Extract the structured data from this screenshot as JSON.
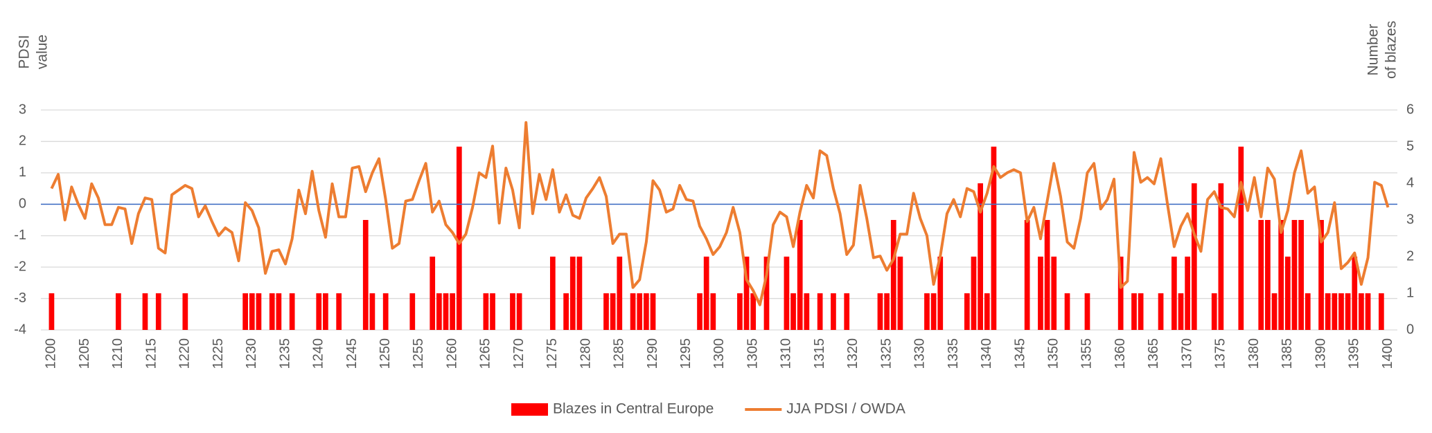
{
  "chart_data": {
    "type": "bar-line",
    "y_label": [
      "PDSI",
      "value"
    ],
    "y2_label": [
      "Number",
      "of blazes"
    ],
    "x": [
      1200,
      1201,
      1202,
      1203,
      1204,
      1205,
      1206,
      1207,
      1208,
      1209,
      1210,
      1211,
      1212,
      1213,
      1214,
      1215,
      1216,
      1217,
      1218,
      1219,
      1220,
      1221,
      1222,
      1223,
      1224,
      1225,
      1226,
      1227,
      1228,
      1229,
      1230,
      1231,
      1232,
      1233,
      1234,
      1235,
      1236,
      1237,
      1238,
      1239,
      1240,
      1241,
      1242,
      1243,
      1244,
      1245,
      1246,
      1247,
      1248,
      1249,
      1250,
      1251,
      1252,
      1253,
      1254,
      1255,
      1256,
      1257,
      1258,
      1259,
      1260,
      1261,
      1262,
      1263,
      1264,
      1265,
      1266,
      1267,
      1268,
      1269,
      1270,
      1271,
      1272,
      1273,
      1274,
      1275,
      1276,
      1277,
      1278,
      1279,
      1280,
      1281,
      1282,
      1283,
      1284,
      1285,
      1286,
      1287,
      1288,
      1289,
      1290,
      1291,
      1292,
      1293,
      1294,
      1295,
      1296,
      1297,
      1298,
      1299,
      1300,
      1301,
      1302,
      1303,
      1304,
      1305,
      1306,
      1307,
      1308,
      1309,
      1310,
      1311,
      1312,
      1313,
      1314,
      1315,
      1316,
      1317,
      1318,
      1319,
      1320,
      1321,
      1322,
      1323,
      1324,
      1325,
      1326,
      1327,
      1328,
      1329,
      1330,
      1331,
      1332,
      1333,
      1334,
      1335,
      1336,
      1337,
      1338,
      1339,
      1340,
      1341,
      1342,
      1343,
      1344,
      1345,
      1346,
      1347,
      1348,
      1349,
      1350,
      1351,
      1352,
      1353,
      1354,
      1355,
      1356,
      1357,
      1358,
      1359,
      1360,
      1361,
      1362,
      1363,
      1364,
      1365,
      1366,
      1367,
      1368,
      1369,
      1370,
      1371,
      1372,
      1373,
      1374,
      1375,
      1376,
      1377,
      1378,
      1379,
      1380,
      1381,
      1382,
      1383,
      1384,
      1385,
      1386,
      1387,
      1388,
      1389,
      1390,
      1391,
      1392,
      1393,
      1394,
      1395,
      1396,
      1397,
      1398,
      1399,
      1400
    ],
    "xlim": [
      1198.4,
      1401.4
    ],
    "xticks": [
      1200,
      1205,
      1210,
      1215,
      1220,
      1225,
      1230,
      1235,
      1240,
      1245,
      1250,
      1255,
      1260,
      1265,
      1270,
      1275,
      1280,
      1285,
      1290,
      1295,
      1300,
      1305,
      1310,
      1315,
      1320,
      1325,
      1330,
      1335,
      1340,
      1345,
      1350,
      1355,
      1360,
      1365,
      1370,
      1375,
      1380,
      1385,
      1390,
      1395,
      1400
    ],
    "ylim": [
      -4,
      3
    ],
    "yticks": [
      -4,
      -3,
      -2,
      -1,
      0,
      1,
      2,
      3
    ],
    "y2lim": [
      0,
      6
    ],
    "y2ticks": [
      0,
      1,
      2,
      3,
      4,
      5,
      6
    ],
    "grid": true,
    "zero_line_color": "#4472c4",
    "legend": "bottom",
    "series": [
      {
        "name": "Blazes in Central Europe",
        "kind": "bar",
        "axis": "y2",
        "color": "#ff0000",
        "values": [
          1,
          0,
          0,
          0,
          0,
          0,
          0,
          0,
          0,
          0,
          1,
          0,
          0,
          0,
          1,
          0,
          1,
          0,
          0,
          0,
          1,
          0,
          0,
          0,
          0,
          0,
          0,
          0,
          0,
          1,
          1,
          1,
          0,
          1,
          1,
          0,
          1,
          0,
          0,
          0,
          1,
          1,
          0,
          1,
          0,
          0,
          0,
          3,
          1,
          0,
          1,
          0,
          0,
          0,
          1,
          0,
          0,
          2,
          1,
          1,
          1,
          5,
          0,
          0,
          0,
          1,
          1,
          0,
          0,
          1,
          1,
          0,
          0,
          0,
          0,
          2,
          0,
          1,
          2,
          2,
          0,
          0,
          0,
          1,
          1,
          2,
          0,
          1,
          1,
          1,
          1,
          0,
          0,
          0,
          0,
          0,
          0,
          1,
          2,
          1,
          0,
          0,
          0,
          1,
          2,
          1,
          0,
          2,
          0,
          0,
          2,
          1,
          3,
          1,
          0,
          1,
          0,
          1,
          0,
          1,
          0,
          0,
          0,
          0,
          1,
          1,
          3,
          2,
          0,
          0,
          0,
          1,
          1,
          2,
          0,
          0,
          0,
          1,
          2,
          4,
          1,
          5,
          0,
          0,
          0,
          0,
          3,
          0,
          2,
          3,
          2,
          0,
          1,
          0,
          0,
          1,
          0,
          0,
          0,
          0,
          2,
          0,
          1,
          1,
          0,
          0,
          1,
          0,
          2,
          1,
          2,
          4,
          0,
          0,
          1,
          4,
          0,
          0,
          5,
          0,
          0,
          3,
          3,
          1,
          3,
          2,
          3,
          3,
          1,
          0,
          3,
          1,
          1,
          1,
          1,
          2,
          1,
          1,
          0,
          1,
          0
        ]
      },
      {
        "name": "JJA PDSI / OWDA",
        "kind": "line",
        "color": "#ed7d31",
        "values": [
          0.5,
          0.95,
          -0.5,
          0.55,
          0,
          -0.45,
          0.65,
          0.2,
          -0.65,
          -0.65,
          -0.1,
          -0.15,
          -1.25,
          -0.3,
          0.2,
          0.15,
          -1.4,
          -1.55,
          0.3,
          0.45,
          0.6,
          0.5,
          -0.4,
          -0.05,
          -0.55,
          -1.0,
          -0.75,
          -0.9,
          -1.8,
          0.05,
          -0.2,
          -0.75,
          -2.2,
          -1.5,
          -1.45,
          -1.9,
          -1.1,
          0.45,
          -0.3,
          1.05,
          -0.2,
          -1.05,
          0.65,
          -0.4,
          -0.4,
          1.15,
          1.2,
          0.4,
          1.0,
          1.45,
          0.15,
          -1.4,
          -1.25,
          0.1,
          0.15,
          0.75,
          1.3,
          -0.25,
          0.1,
          -0.65,
          -0.9,
          -1.25,
          -0.95,
          -0.1,
          1.0,
          0.85,
          1.85,
          -0.6,
          1.15,
          0.45,
          -0.75,
          2.6,
          -0.3,
          0.95,
          0.15,
          1.1,
          -0.25,
          0.3,
          -0.35,
          -0.45,
          0.2,
          0.5,
          0.85,
          0.25,
          -1.25,
          -0.95,
          -0.95,
          -2.65,
          -2.4,
          -1.2,
          0.75,
          0.45,
          -0.25,
          -0.15,
          0.6,
          0.15,
          0.1,
          -0.7,
          -1.1,
          -1.6,
          -1.35,
          -0.9,
          -0.1,
          -0.9,
          -2.4,
          -2.75,
          -3.2,
          -2.25,
          -0.65,
          -0.25,
          -0.4,
          -1.35,
          -0.25,
          0.6,
          0.2,
          1.7,
          1.55,
          0.5,
          -0.3,
          -1.6,
          -1.3,
          0.6,
          -0.45,
          -1.7,
          -1.65,
          -2.1,
          -1.75,
          -0.95,
          -0.95,
          0.35,
          -0.45,
          -1.0,
          -2.55,
          -1.65,
          -0.3,
          0.15,
          -0.4,
          0.5,
          0.4,
          -0.25,
          0.35,
          1.2,
          0.85,
          1.0,
          1.1,
          1.0,
          -0.55,
          -0.1,
          -1.1,
          0.1,
          1.3,
          0.25,
          -1.2,
          -1.4,
          -0.45,
          1.0,
          1.3,
          -0.15,
          0.15,
          0.8,
          -2.65,
          -2.45,
          1.65,
          0.7,
          0.85,
          0.65,
          1.45,
          0,
          -1.35,
          -0.7,
          -0.3,
          -0.95,
          -1.5,
          0.15,
          0.4,
          -0.1,
          -0.15,
          -0.4,
          0.7,
          -0.2,
          0.85,
          -0.4,
          1.15,
          0.8,
          -0.9,
          -0.2,
          1.0,
          1.7,
          0.35,
          0.55,
          -1.2,
          -0.9,
          0.05,
          -2.05,
          -1.85,
          -1.55,
          -2.55,
          -1.7,
          0.7,
          0.6,
          -0.1
        ]
      }
    ]
  }
}
